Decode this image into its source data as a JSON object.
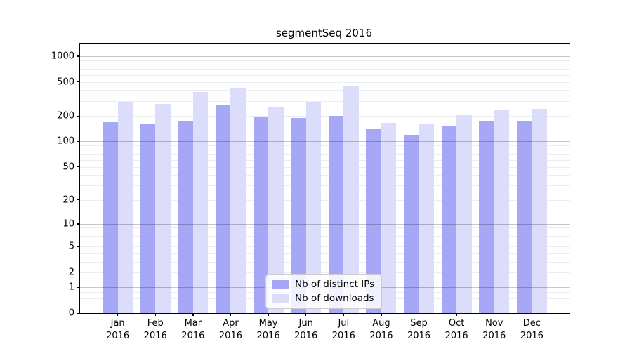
{
  "figure": {
    "background_color": "#ffffff",
    "frame_color": "#000000"
  },
  "chart_data": {
    "type": "bar",
    "title": "segmentSeq 2016",
    "xlabel": "",
    "ylabel": "",
    "categories": [
      "Jan",
      "Feb",
      "Mar",
      "Apr",
      "May",
      "Jun",
      "Jul",
      "Aug",
      "Sep",
      "Oct",
      "Nov",
      "Dec"
    ],
    "category_year": "2016",
    "series": [
      {
        "name": "Nb of distinct IPs",
        "color": "#a7a7f8",
        "values": [
          168,
          162,
          172,
          270,
          193,
          190,
          200,
          140,
          120,
          151,
          172,
          173
        ]
      },
      {
        "name": "Nb of downloads",
        "color": "#dcdcfb",
        "values": [
          295,
          276,
          380,
          420,
          250,
          285,
          450,
          166,
          160,
          204,
          237,
          240
        ]
      }
    ],
    "y_scale": "log10(1+v)",
    "ylim": [
      0,
      1000
    ],
    "y_ticks": [
      0,
      1,
      2,
      5,
      10,
      20,
      50,
      100,
      200,
      500,
      1000
    ],
    "y_major_gridlines": [
      1,
      10,
      100,
      1000
    ],
    "y_minor_gridlines": [
      0.25,
      0.5,
      0.75,
      2,
      3,
      4,
      5,
      6,
      7,
      8,
      9,
      20,
      30,
      40,
      50,
      60,
      70,
      80,
      90,
      200,
      300,
      400,
      500,
      600,
      700,
      800,
      900
    ],
    "major_grid_color": "rgba(0,0,0,0.22)",
    "minor_grid_color": "rgba(0,0,0,0.07)",
    "grid": "on",
    "legend_position": "inside-bottom-center"
  }
}
